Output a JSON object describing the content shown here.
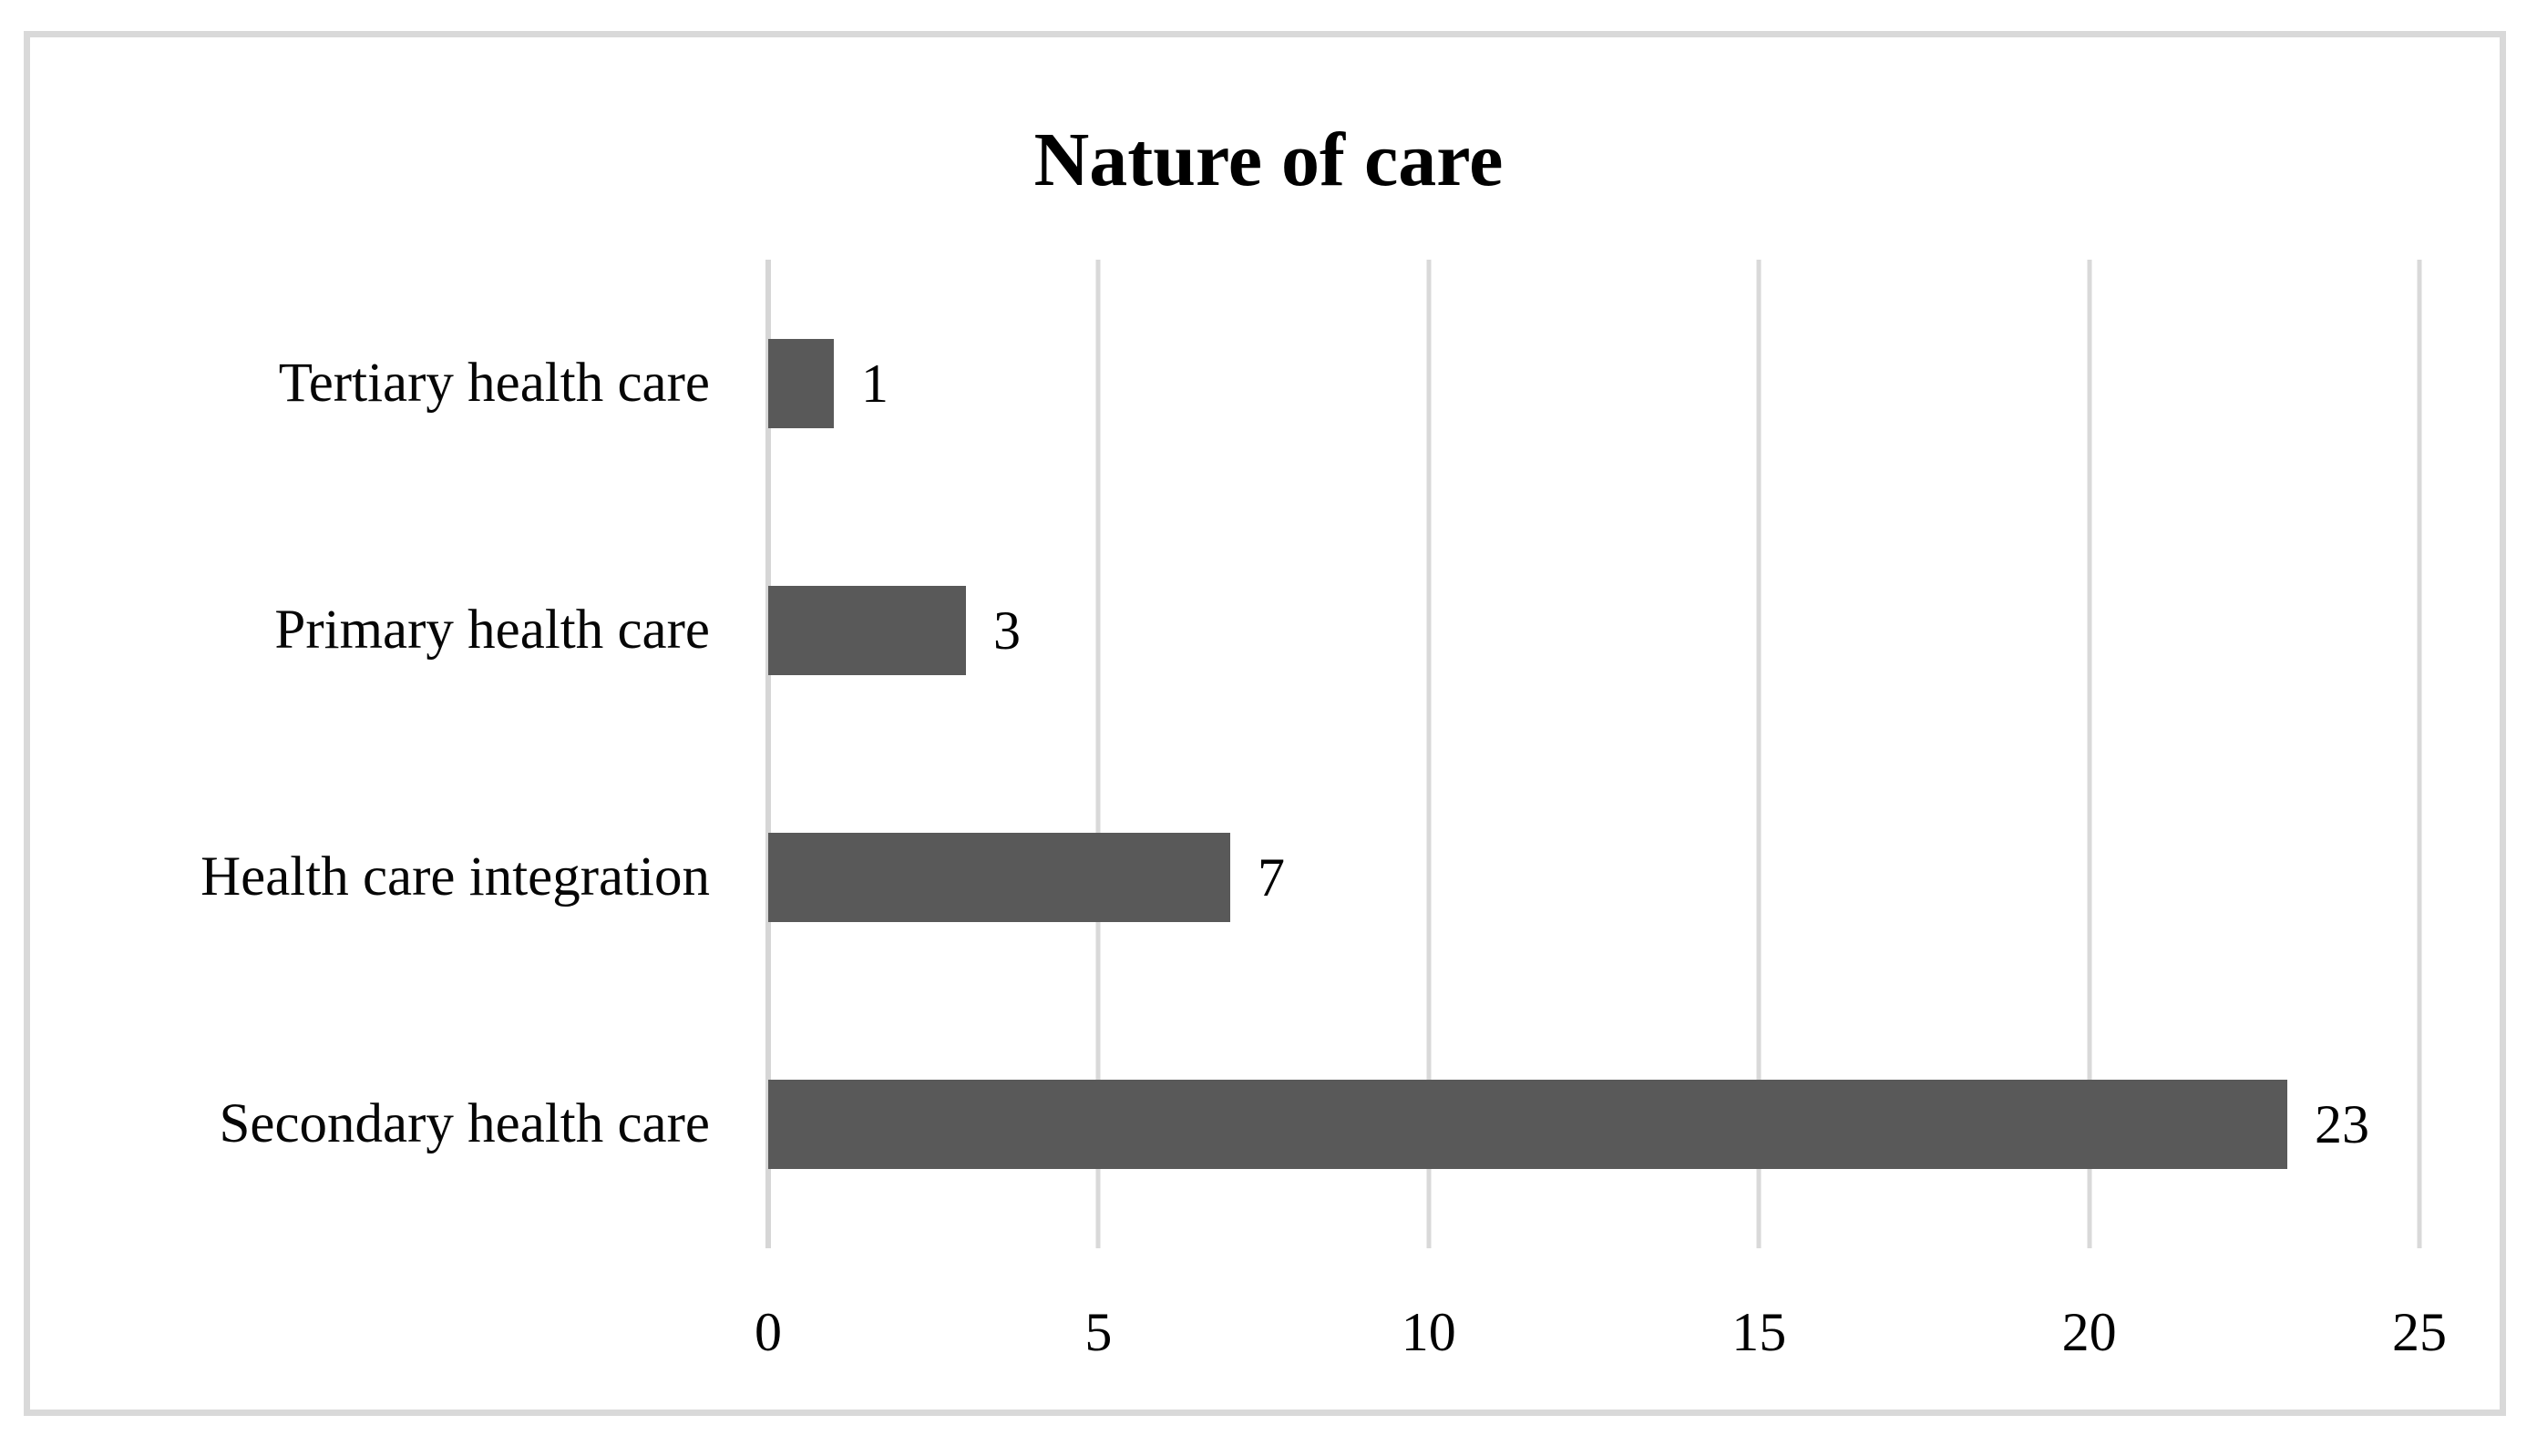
{
  "chart_data": {
    "type": "bar",
    "orientation": "horizontal",
    "title": "Nature of care",
    "categories_top_to_bottom": [
      "Tertiary health care",
      "Primary health care",
      "Health care integration",
      "Secondary health care"
    ],
    "values": [
      1,
      3,
      7,
      23
    ],
    "data_labels": [
      "1",
      "3",
      "7",
      "23"
    ],
    "xlabel": "",
    "ylabel": "",
    "xlim": [
      0,
      25
    ],
    "xticks": [
      0,
      5,
      10,
      15,
      20,
      25
    ],
    "grid": "vertical-gridlines-on",
    "legend": "none",
    "bar_color": "#595959",
    "gridline_color": "#d9d9d9",
    "frame_border_color": "#d9d9d9",
    "text_color": "#000000",
    "background_color": "#ffffff"
  }
}
